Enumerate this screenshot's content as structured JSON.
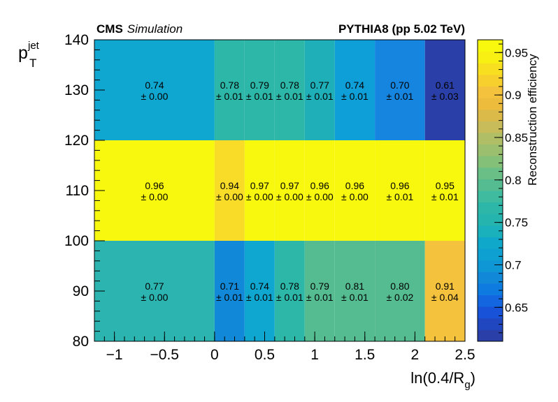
{
  "chart_data": {
    "type": "heatmap",
    "header_left": {
      "bold": "CMS",
      "italic": "Simulation"
    },
    "header_right": "PYTHIA8 (pp 5.02 TeV)",
    "xlabel": {
      "main": "ln(0.4/R",
      "sub": "g",
      "close": ")"
    },
    "ylabel": {
      "main": "p",
      "sup": "jet",
      "sub": "T"
    },
    "zlabel": "Reconstruction efficiency",
    "xlim": [
      -1.2,
      2.5
    ],
    "ylim": [
      80,
      140
    ],
    "zlim": [
      0.61,
      0.965
    ],
    "x_ticks": [
      {
        "v": -1,
        "label": "−1"
      },
      {
        "v": -0.5,
        "label": "−0.5"
      },
      {
        "v": 0,
        "label": "0"
      },
      {
        "v": 0.5,
        "label": "0.5"
      },
      {
        "v": 1,
        "label": "1"
      },
      {
        "v": 1.5,
        "label": "1.5"
      },
      {
        "v": 2,
        "label": "2"
      },
      {
        "v": 2.5,
        "label": "2.5"
      }
    ],
    "y_ticks": [
      {
        "v": 80,
        "label": "80"
      },
      {
        "v": 90,
        "label": "90"
      },
      {
        "v": 100,
        "label": "100"
      },
      {
        "v": 110,
        "label": "110"
      },
      {
        "v": 120,
        "label": "120"
      },
      {
        "v": 130,
        "label": "130"
      },
      {
        "v": 140,
        "label": "140"
      }
    ],
    "z_ticks": [
      {
        "v": 0.65,
        "label": "0.65"
      },
      {
        "v": 0.7,
        "label": "0.7"
      },
      {
        "v": 0.75,
        "label": "0.75"
      },
      {
        "v": 0.8,
        "label": "0.8"
      },
      {
        "v": 0.85,
        "label": "0.85"
      },
      {
        "v": 0.9,
        "label": "0.9"
      },
      {
        "v": 0.95,
        "label": "0.95"
      }
    ],
    "x_edges": [
      -1.2,
      0,
      0.3,
      0.6,
      0.9,
      1.2,
      1.6,
      2.1,
      2.5
    ],
    "y_edges": [
      80,
      100,
      120,
      140
    ],
    "value_labels": [
      [
        "0.77",
        "0.71",
        "0.74",
        "0.78",
        "0.79",
        "0.81",
        "0.80",
        "0.91"
      ],
      [
        "0.96",
        "0.94",
        "0.97",
        "0.97",
        "0.96",
        "0.96",
        "0.96",
        "0.95"
      ],
      [
        "0.74",
        "0.78",
        "0.79",
        "0.78",
        "0.77",
        "0.74",
        "0.70",
        "0.61"
      ]
    ],
    "error_labels": [
      [
        "± 0.00",
        "± 0.01",
        "± 0.01",
        "± 0.01",
        "± 0.01",
        "± 0.01",
        "± 0.02",
        "± 0.04"
      ],
      [
        "± 0.00",
        "± 0.00",
        "± 0.00",
        "± 0.00",
        "± 0.00",
        "± 0.00",
        "± 0.01",
        "± 0.01"
      ],
      [
        "± 0.00",
        "± 0.01",
        "± 0.01",
        "± 0.01",
        "± 0.01",
        "± 0.01",
        "± 0.01",
        "± 0.03"
      ]
    ],
    "cell_colors": [
      [
        "#2BB4B0",
        "#1289D8",
        "#0FA6CF",
        "#2DB7A8",
        "#55BC91",
        "#55BC91",
        "#55BC91",
        "#F4C23C"
      ],
      [
        "#F8F80F",
        "#F8DC28",
        "#F8F80F",
        "#F8F80F",
        "#F8F80F",
        "#F8F80F",
        "#F8F80F",
        "#F8F80F"
      ],
      [
        "#0FA6CF",
        "#2DB7A8",
        "#2DB7A8",
        "#2DB7A8",
        "#1EAFB8",
        "#0E9ED8",
        "#1585E0",
        "#2A40A8"
      ]
    ],
    "palette": [
      "#2A40A8",
      "#2147C0",
      "#1752D8",
      "#1466E0",
      "#0E7BE0",
      "#1289D8",
      "#0F96D4",
      "#0FA0D2",
      "#0FA8CA",
      "#1AB0BC",
      "#26B4AF",
      "#2DB7A8",
      "#3FBB9F",
      "#55BC91",
      "#6ABF86",
      "#85C078",
      "#9BBF6E",
      "#B0BE65",
      "#C8BB5A",
      "#DCBA4A",
      "#EDBC3C",
      "#F4C23C",
      "#F8D02E",
      "#F8E020",
      "#F8F012",
      "#F8F80F"
    ]
  }
}
